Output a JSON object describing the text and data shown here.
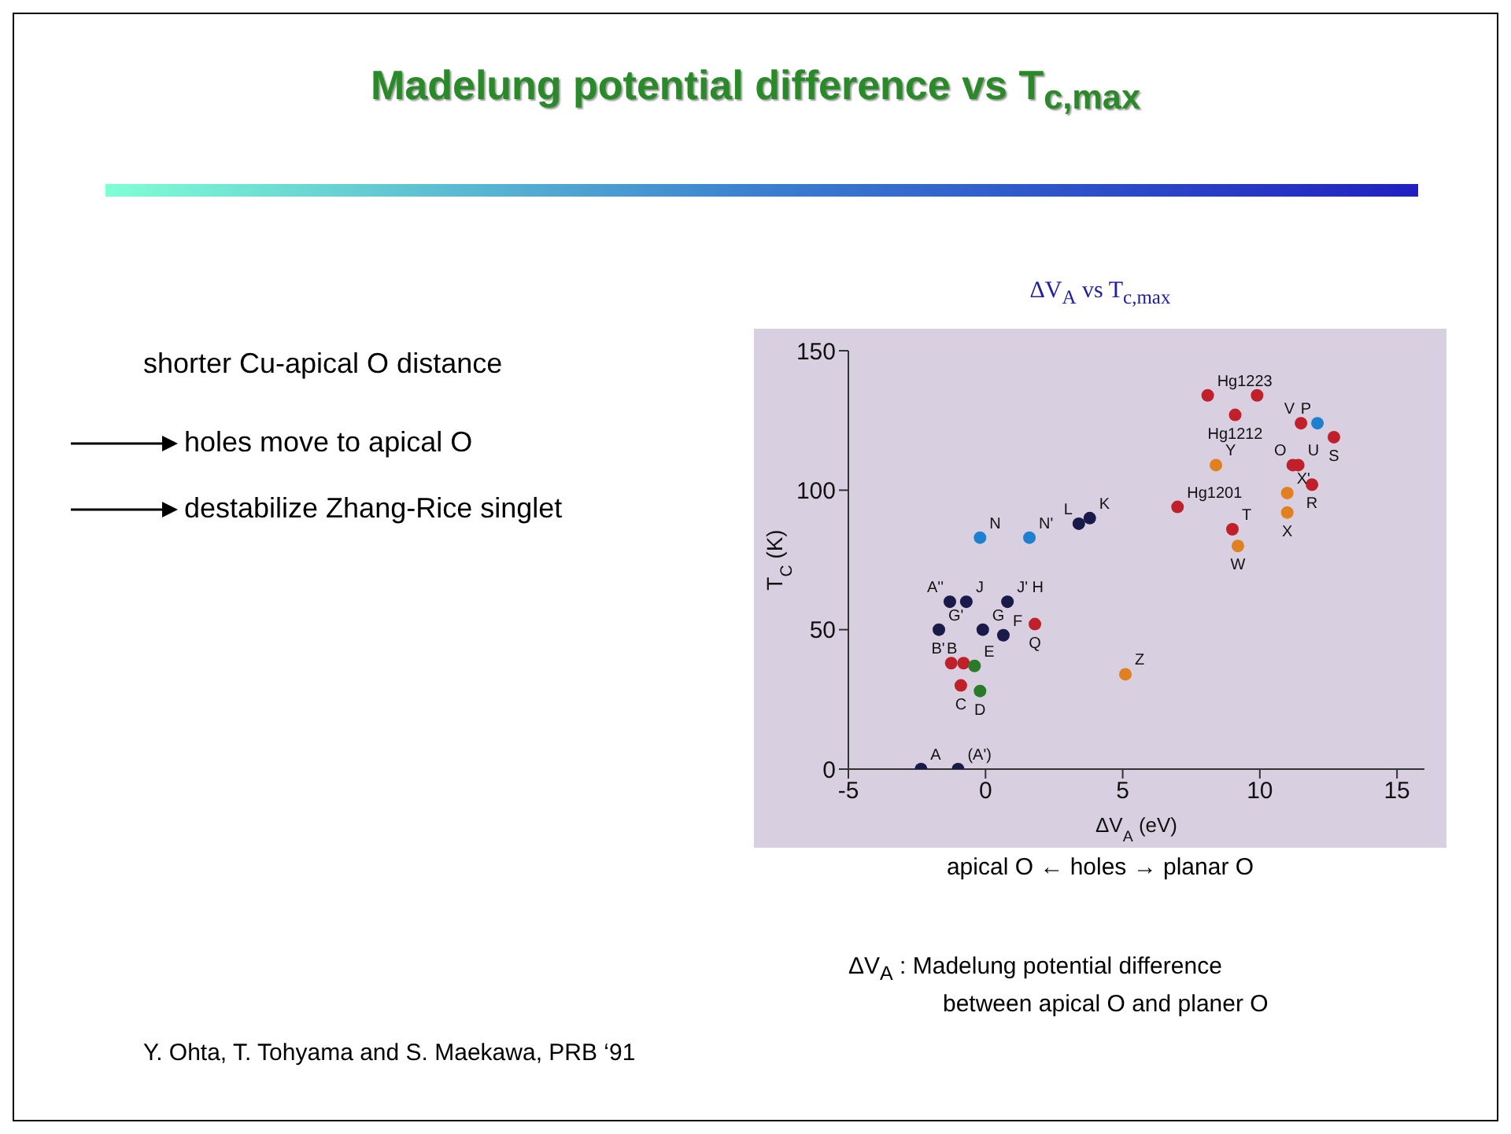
{
  "chart_data": {
    "type": "scatter",
    "title": "ΔV$_{A}$ vs T$_{c,max}$",
    "xlabel": "ΔV$_{A}$ (eV)",
    "ylabel": "T$_{C}$ (K)",
    "annotations": [
      "Madelung potential difference vs T$_{c,max}$",
      "shorter Cu-apical O distance",
      "holes move to apical O",
      "destabilize Zhang-Rice singlet",
      "apical O ← holes → planar O",
      "ΔV$_{A}$ : Madelung potential difference",
      "between apical O and planer O",
      "Y. Ohta, T. Tohyama and S. Maekawa, PRB ‘91"
    ],
    "x": [
      -2.35,
      -1.0,
      -1.3,
      -0.7,
      0.8,
      -1.7,
      -0.1,
      0.65,
      1.8,
      -1.25,
      -0.8,
      -0.4,
      -0.9,
      -0.2,
      5.1,
      -0.2,
      1.6,
      3.4,
      3.8,
      8.1,
      9.9,
      9.1,
      11.5,
      12.1,
      12.7,
      8.4,
      11.2,
      11.4,
      11.9,
      7.0,
      11.0,
      11.0,
      9.0,
      9.2
    ],
    "values": [
      0,
      0,
      60,
      60,
      60,
      50,
      50,
      48,
      52,
      38,
      38,
      37,
      30,
      28,
      34,
      83,
      83,
      88,
      90,
      134,
      134,
      127,
      124,
      124,
      119,
      109,
      109,
      109,
      102,
      94,
      99,
      92,
      86,
      80
    ],
    "value_labels": [
      "A",
      "(A')",
      "A''",
      "J",
      "J' H",
      "G'",
      "G",
      "F",
      "Q",
      "B'",
      "B",
      "E",
      "C",
      "D",
      "Z",
      "N",
      "N'",
      "L",
      "K",
      "Hg1223",
      null,
      "Hg1212",
      "V",
      "P",
      "S",
      "Y",
      "O",
      "U",
      "R",
      "Hg1201",
      "X'",
      "X",
      "T",
      "W"
    ],
    "colors": [
      "#1a1a4a",
      "#1a1a4a",
      "#1a1a4a",
      "#1a1a4a",
      "#1a1a4a",
      "#1a1a4a",
      "#1a1a4a",
      "#1a1a4a",
      "#c0202a",
      "#c0202a",
      "#c0202a",
      "#2a7a2a",
      "#c0202a",
      "#2a7a2a",
      "#e08020",
      "#2080d0",
      "#2080d0",
      "#1a1a4a",
      "#1a1a4a",
      "#c0202a",
      "#c0202a",
      "#c0202a",
      "#c0202a",
      "#2080d0",
      "#c0202a",
      "#e08020",
      "#c0202a",
      "#c0202a",
      "#c0202a",
      "#c0202a",
      "#e08020",
      "#e08020",
      "#c0202a",
      "#e08020"
    ],
    "xlim": [
      -5,
      16
    ],
    "xticks": [
      -5,
      0,
      5,
      10,
      15
    ],
    "ylim": [
      0,
      150
    ],
    "yticks": [
      0,
      50,
      100,
      150
    ],
    "grid": false,
    "legend": false,
    "marker": "circle"
  }
}
